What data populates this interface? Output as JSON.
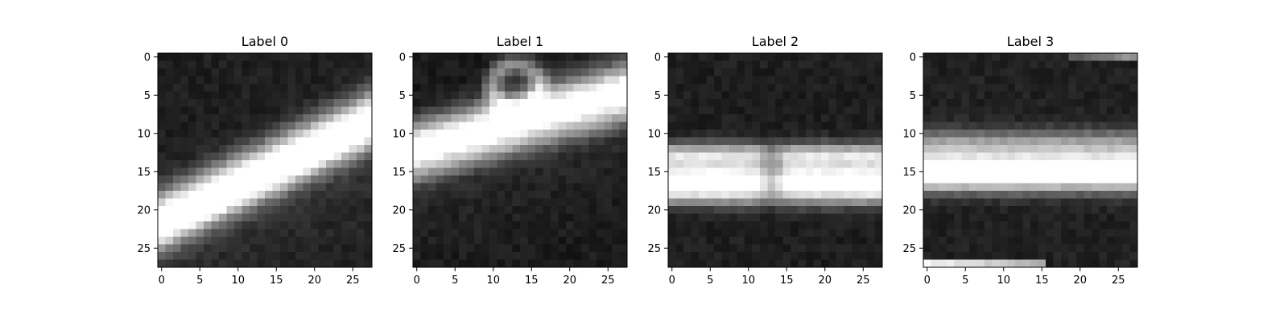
{
  "chart_data": [
    {
      "type": "heatmap",
      "title": "Label 0",
      "colormap": "gray",
      "xlim": [
        -0.5,
        27.5
      ],
      "ylim": [
        27.5,
        -0.5
      ],
      "xticks": [
        0,
        5,
        10,
        15,
        20,
        25
      ],
      "yticks": [
        0,
        5,
        10,
        15,
        20,
        25
      ],
      "grid": false,
      "image_shape": [
        28,
        28
      ],
      "vmin": 0,
      "vmax": 1,
      "pattern": {
        "kind": "rising-band",
        "x0": 0,
        "y0": 22,
        "x1": 27,
        "y1": 9,
        "width": 2.2,
        "peak": 0.93,
        "background": 0.12
      }
    },
    {
      "type": "heatmap",
      "title": "Label 1",
      "colormap": "gray",
      "xlim": [
        -0.5,
        27.5
      ],
      "ylim": [
        27.5,
        -0.5
      ],
      "xticks": [
        0,
        5,
        10,
        15,
        20,
        25
      ],
      "yticks": [
        0,
        5,
        10,
        15,
        20,
        25
      ],
      "grid": false,
      "image_shape": [
        28,
        28
      ],
      "vmin": 0,
      "vmax": 1,
      "pattern": {
        "kind": "rising-band-with-loop",
        "x0": 0,
        "y0": 12,
        "x1": 27,
        "y1": 4.5,
        "width": 1.6,
        "peak": 0.9,
        "background": 0.1,
        "loop_center": [
          13,
          4
        ],
        "loop_radius": 3
      }
    },
    {
      "type": "heatmap",
      "title": "Label 2",
      "colormap": "gray",
      "xlim": [
        -0.5,
        27.5
      ],
      "ylim": [
        27.5,
        -0.5
      ],
      "xticks": [
        0,
        5,
        10,
        15,
        20,
        25
      ],
      "yticks": [
        0,
        5,
        10,
        15,
        20,
        25
      ],
      "grid": false,
      "image_shape": [
        28,
        28
      ],
      "vmin": 0,
      "vmax": 1,
      "pattern": {
        "kind": "horizontal-bands",
        "bands": [
          [
            13,
            0.75
          ],
          [
            16,
            0.9
          ],
          [
            18,
            0.55
          ]
        ],
        "width": 1.2,
        "notch_x": 13,
        "background": 0.12
      }
    },
    {
      "type": "heatmap",
      "title": "Label 3",
      "colormap": "gray",
      "xlim": [
        -0.5,
        27.5
      ],
      "ylim": [
        27.5,
        -0.5
      ],
      "xticks": [
        0,
        5,
        10,
        15,
        20,
        25
      ],
      "yticks": [
        0,
        5,
        10,
        15,
        20,
        25
      ],
      "grid": false,
      "image_shape": [
        28,
        28
      ],
      "vmin": 0,
      "vmax": 1,
      "pattern": {
        "kind": "horizontal-bands",
        "bands": [
          [
            11.5,
            0.5
          ],
          [
            14.5,
            0.78
          ],
          [
            16,
            0.55
          ]
        ],
        "width": 1.4,
        "bottom_bright_row": 27,
        "bottom_bright_until_x": 15,
        "top_right_bright": true,
        "background": 0.13
      }
    }
  ]
}
